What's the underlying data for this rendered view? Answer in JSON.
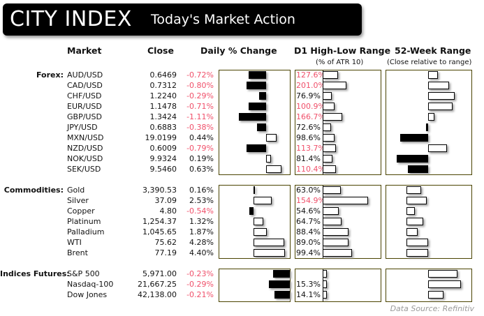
{
  "header": {
    "logo": "CITY INDEX",
    "title": "Today's Market Action"
  },
  "columns": {
    "market": "Market",
    "close": "Close",
    "change": "Daily % Change",
    "range": "D1 High-Low Range",
    "range_sub": "(% of ATR 10)",
    "week52": "52-Week Range",
    "week52_sub": "(Close relative to range)"
  },
  "colors": {
    "negative": "#f0506a",
    "panel_border": "#4a4300"
  },
  "sections": [
    {
      "label": "Forex:",
      "rows": [
        {
          "market": "AUD/USD",
          "close": "0.6469",
          "change": "-0.72%",
          "change_value": -0.72,
          "range": "127.6%",
          "range_value": 127.6,
          "range_hot": true,
          "week52": 14
        },
        {
          "market": "CAD/USD",
          "close": "0.7312",
          "change": "-0.80%",
          "change_value": -0.8,
          "range": "201.0%",
          "range_value": 201.0,
          "range_hot": true,
          "week52": 30
        },
        {
          "market": "CHF/USD",
          "close": "1.2240",
          "change": "-0.29%",
          "change_value": -0.29,
          "range": "76.9%",
          "range_value": 76.9,
          "range_hot": false,
          "week52": 38
        },
        {
          "market": "EUR/USD",
          "close": "1.1478",
          "change": "-0.71%",
          "change_value": -0.71,
          "range": "100.9%",
          "range_value": 100.9,
          "range_hot": true,
          "week52": 35
        },
        {
          "market": "GBP/USD",
          "close": "1.3424",
          "change": "-1.11%",
          "change_value": -1.11,
          "range": "166.7%",
          "range_value": 166.7,
          "range_hot": true,
          "week52": 9
        },
        {
          "market": "JPY/USD",
          "close": "0.6883",
          "change": "-0.38%",
          "change_value": -0.38,
          "range": "72.6%",
          "range_value": 72.6,
          "range_hot": false,
          "week52": -3
        },
        {
          "market": "MXN/USD",
          "close": "19.0199",
          "change": "0.44%",
          "change_value": 0.44,
          "range": "98.6%",
          "range_value": 98.6,
          "range_hot": false,
          "week52": -40
        },
        {
          "market": "NZD/USD",
          "close": "0.6009",
          "change": "-0.79%",
          "change_value": -0.79,
          "range": "113.7%",
          "range_value": 113.7,
          "range_hot": true,
          "week52": 27
        },
        {
          "market": "NOK/USD",
          "close": "9.9324",
          "change": "0.19%",
          "change_value": 0.19,
          "range": "81.4%",
          "range_value": 81.4,
          "range_hot": false,
          "week52": -45
        },
        {
          "market": "SEK/USD",
          "close": "9.5460",
          "change": "0.63%",
          "change_value": 0.63,
          "range": "110.4%",
          "range_value": 110.4,
          "range_hot": true,
          "week52": -29
        }
      ]
    },
    {
      "label": "Commodities:",
      "rows": [
        {
          "market": "Gold",
          "close": "3,390.53",
          "change": "0.16%",
          "change_value": 0.16,
          "range": "63.0%",
          "range_value": 63.0,
          "range_hot": false,
          "week52": 21
        },
        {
          "market": "Silver",
          "close": "37.09",
          "change": "2.53%",
          "change_value": 2.53,
          "range": "154.9%",
          "range_value": 154.9,
          "range_hot": true,
          "week52": 29
        },
        {
          "market": "Copper",
          "close": "4.80",
          "change": "-0.54%",
          "change_value": -0.54,
          "range": "54.6%",
          "range_value": 54.6,
          "range_hot": false,
          "week52": 12
        },
        {
          "market": "Platinum",
          "close": "1,254.37",
          "change": "1.32%",
          "change_value": 1.32,
          "range": "64.7%",
          "range_value": 64.7,
          "range_hot": false,
          "week52": 24
        },
        {
          "market": "Palladium",
          "close": "1,045.65",
          "change": "1.87%",
          "change_value": 1.87,
          "range": "88.4%",
          "range_value": 88.4,
          "range_hot": false,
          "week52": 16
        },
        {
          "market": "WTI",
          "close": "75.62",
          "change": "4.28%",
          "change_value": 4.28,
          "range": "89.0%",
          "range_value": 89.0,
          "range_hot": false,
          "week52": 31
        },
        {
          "market": "Brent",
          "close": "77.19",
          "change": "4.40%",
          "change_value": 4.4,
          "range": "99.4%",
          "range_value": 99.4,
          "range_hot": false,
          "week52": 31
        }
      ]
    },
    {
      "label": "Indices Futures:",
      "rows": [
        {
          "market": "S&P 500",
          "close": "5,971.00",
          "change": "-0.23%",
          "change_value": -0.23,
          "range": "",
          "range_value": 15,
          "range_hot": false,
          "week52": 42
        },
        {
          "market": "Nasdaq-100",
          "close": "21,667.25",
          "change": "-0.29%",
          "change_value": -0.29,
          "range": "15.3%",
          "range_value": 15.3,
          "range_hot": false,
          "week52": 47
        },
        {
          "market": "Dow Jones",
          "close": "42,138.00",
          "change": "-0.21%",
          "change_value": -0.21,
          "range": "14.1%",
          "range_value": 14.1,
          "range_hot": false,
          "week52": 22
        }
      ]
    }
  ],
  "footer": {
    "source": "Data Source: Refinitiv"
  }
}
